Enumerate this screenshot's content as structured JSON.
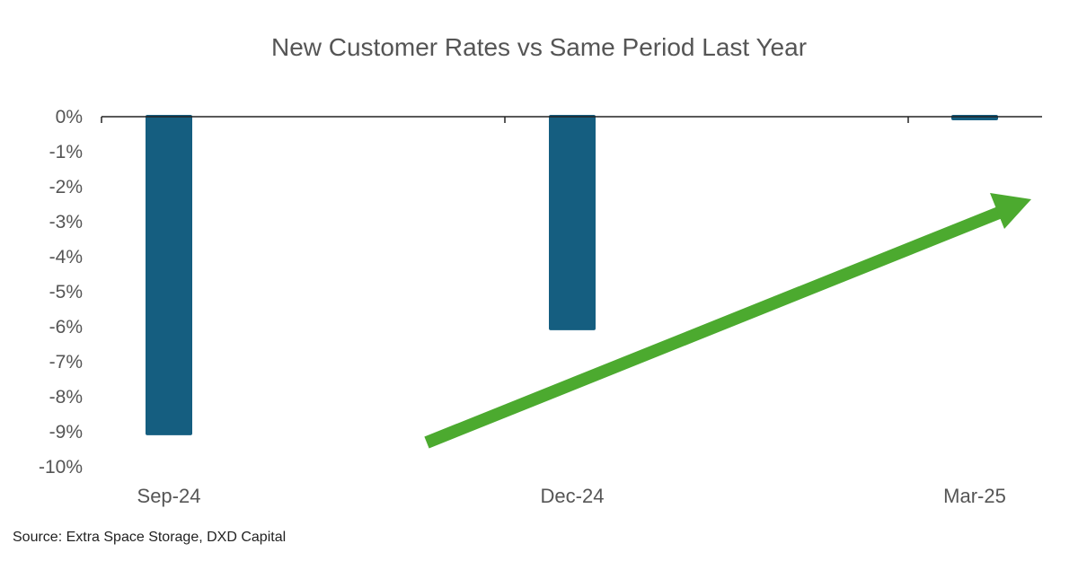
{
  "chart_data": {
    "type": "bar",
    "title": "New Customer Rates vs Same Period Last Year",
    "categories": [
      "Sep-24",
      "Dec-24",
      "Mar-25"
    ],
    "values": [
      -9.1,
      -6.1,
      -0.05
    ],
    "ylim": [
      -10,
      0
    ],
    "yticks": [
      0,
      -1,
      -2,
      -3,
      -4,
      -5,
      -6,
      -7,
      -8,
      -9,
      -10
    ],
    "ytick_labels": [
      "0%",
      "-1%",
      "-2%",
      "-3%",
      "-4%",
      "-5%",
      "-6%",
      "-7%",
      "-8%",
      "-9%",
      "-10%"
    ],
    "xlabel": "",
    "ylabel": "",
    "grid": false,
    "bar_color": "#155e80",
    "annotation": {
      "type": "trend-arrow",
      "direction": "up-right",
      "color": "#4caa2f"
    }
  },
  "source": "Source: Extra Space Storage, DXD Capital"
}
